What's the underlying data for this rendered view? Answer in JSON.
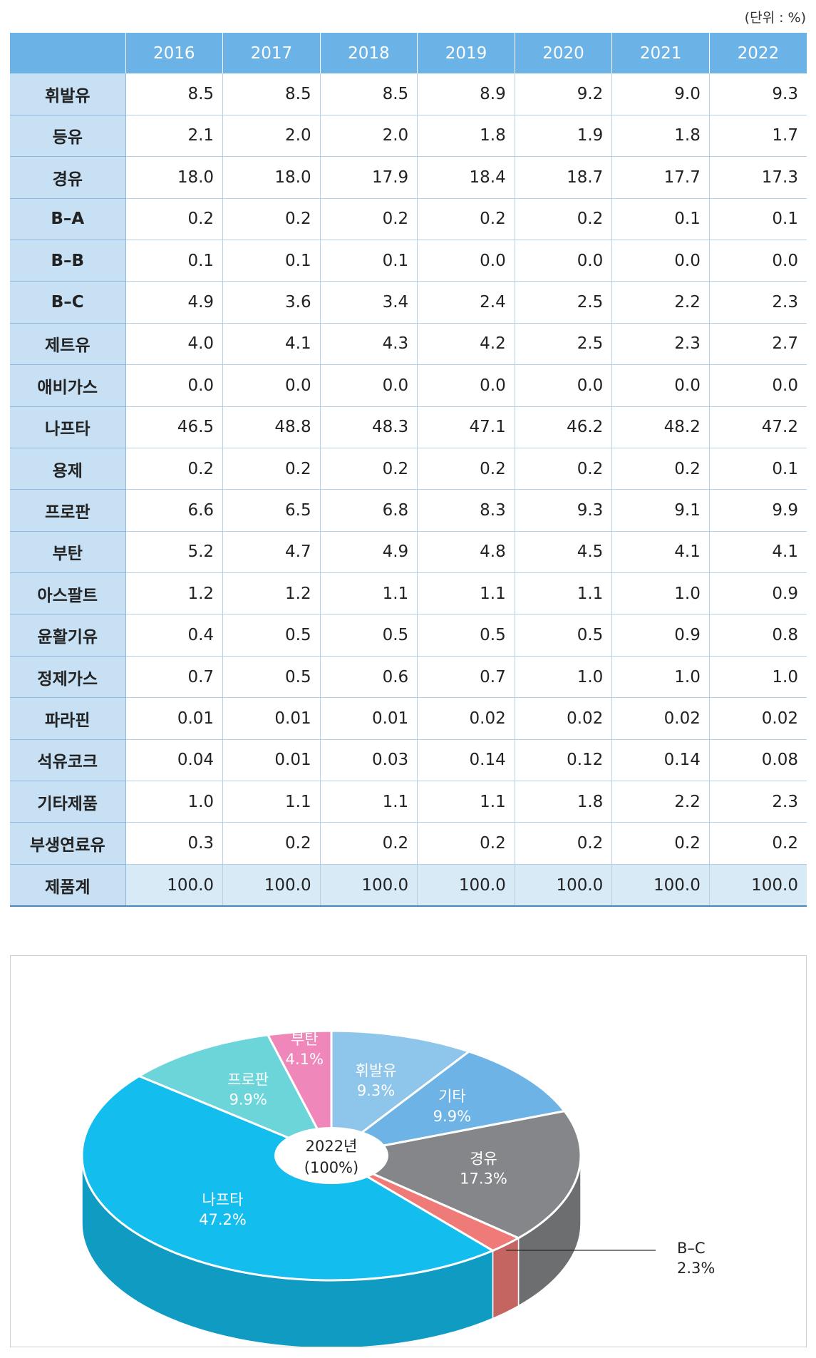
{
  "unit_note": "(단위 : %)",
  "table": {
    "corner": "",
    "years": [
      "2016",
      "2017",
      "2018",
      "2019",
      "2020",
      "2021",
      "2022"
    ],
    "rows": [
      {
        "label": "휘발유",
        "values": [
          "8.5",
          "8.5",
          "8.5",
          "8.9",
          "9.2",
          "9.0",
          "9.3"
        ]
      },
      {
        "label": "등유",
        "values": [
          "2.1",
          "2.0",
          "2.0",
          "1.8",
          "1.9",
          "1.8",
          "1.7"
        ]
      },
      {
        "label": "경유",
        "values": [
          "18.0",
          "18.0",
          "17.9",
          "18.4",
          "18.7",
          "17.7",
          "17.3"
        ]
      },
      {
        "label": "B–A",
        "values": [
          "0.2",
          "0.2",
          "0.2",
          "0.2",
          "0.2",
          "0.1",
          "0.1"
        ]
      },
      {
        "label": "B–B",
        "values": [
          "0.1",
          "0.1",
          "0.1",
          "0.0",
          "0.0",
          "0.0",
          "0.0"
        ]
      },
      {
        "label": "B–C",
        "values": [
          "4.9",
          "3.6",
          "3.4",
          "2.4",
          "2.5",
          "2.2",
          "2.3"
        ]
      },
      {
        "label": "제트유",
        "values": [
          "4.0",
          "4.1",
          "4.3",
          "4.2",
          "2.5",
          "2.3",
          "2.7"
        ]
      },
      {
        "label": "애비가스",
        "values": [
          "0.0",
          "0.0",
          "0.0",
          "0.0",
          "0.0",
          "0.0",
          "0.0"
        ]
      },
      {
        "label": "나프타",
        "values": [
          "46.5",
          "48.8",
          "48.3",
          "47.1",
          "46.2",
          "48.2",
          "47.2"
        ]
      },
      {
        "label": "용제",
        "values": [
          "0.2",
          "0.2",
          "0.2",
          "0.2",
          "0.2",
          "0.2",
          "0.1"
        ]
      },
      {
        "label": "프로판",
        "values": [
          "6.6",
          "6.5",
          "6.8",
          "8.3",
          "9.3",
          "9.1",
          "9.9"
        ]
      },
      {
        "label": "부탄",
        "values": [
          "5.2",
          "4.7",
          "4.9",
          "4.8",
          "4.5",
          "4.1",
          "4.1"
        ]
      },
      {
        "label": "아스팔트",
        "values": [
          "1.2",
          "1.2",
          "1.1",
          "1.1",
          "1.1",
          "1.0",
          "0.9"
        ]
      },
      {
        "label": "윤활기유",
        "values": [
          "0.4",
          "0.5",
          "0.5",
          "0.5",
          "0.5",
          "0.9",
          "0.8"
        ]
      },
      {
        "label": "정제가스",
        "values": [
          "0.7",
          "0.5",
          "0.6",
          "0.7",
          "1.0",
          "1.0",
          "1.0"
        ]
      },
      {
        "label": "파라핀",
        "values": [
          "0.01",
          "0.01",
          "0.01",
          "0.02",
          "0.02",
          "0.02",
          "0.02"
        ]
      },
      {
        "label": "석유코크",
        "values": [
          "0.04",
          "0.01",
          "0.03",
          "0.14",
          "0.12",
          "0.14",
          "0.08"
        ]
      },
      {
        "label": "기타제품",
        "values": [
          "1.0",
          "1.1",
          "1.1",
          "1.1",
          "1.8",
          "2.2",
          "2.3"
        ]
      },
      {
        "label": "부생연료유",
        "values": [
          "0.3",
          "0.2",
          "0.2",
          "0.2",
          "0.2",
          "0.2",
          "0.2"
        ]
      },
      {
        "label": "제품계",
        "values": [
          "100.0",
          "100.0",
          "100.0",
          "100.0",
          "100.0",
          "100.0",
          "100.0"
        ],
        "total": true
      }
    ]
  },
  "chart_data": {
    "type": "pie",
    "style": "3d-donut",
    "center_label": [
      "2022년",
      "(100%)"
    ],
    "slices": [
      {
        "name": "휘발유",
        "value": 9.3,
        "label": "9.3%",
        "color": "#8ec5ea"
      },
      {
        "name": "기타",
        "value": 9.9,
        "label": "9.9%",
        "color": "#6db3e5"
      },
      {
        "name": "경유",
        "value": 17.3,
        "label": "17.3%",
        "color": "#848689"
      },
      {
        "name": "B–C",
        "value": 2.3,
        "label": "2.3%",
        "color": "#ef7b78"
      },
      {
        "name": "나프타",
        "value": 47.2,
        "label": "47.2%",
        "color": "#13bdee"
      },
      {
        "name": "프로판",
        "value": 9.9,
        "label": "9.9%",
        "color": "#6cd5da"
      },
      {
        "name": "부탄",
        "value": 4.1,
        "label": "4.1%",
        "color": "#ef87bb"
      }
    ]
  }
}
